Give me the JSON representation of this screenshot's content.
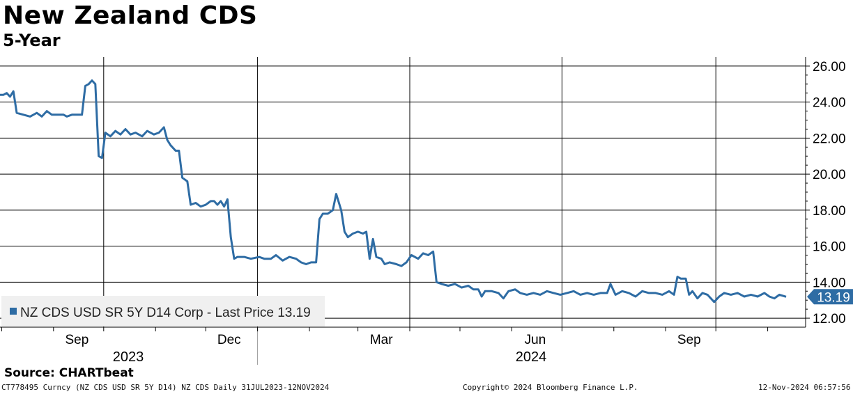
{
  "header": {
    "title": "New Zealand CDS",
    "subtitle": "5-Year"
  },
  "footer": {
    "source": "Source: CHARTbeat",
    "ticker_info": "CT778495 Curncy (NZ CDS USD SR 5Y D14) NZ CDS  Daily 31JUL2023-12NOV2024",
    "copyright": "Copyright© 2024 Bloomberg Finance L.P.",
    "timestamp": "12-Nov-2024 06:57:56"
  },
  "colors": {
    "line": "#2e6ca4",
    "grid": "#000000",
    "legend_bg": "#f0f0f0"
  },
  "chart_data": {
    "type": "line",
    "title": "New Zealand CDS",
    "subtitle": "5-Year",
    "x_range": [
      "2023-07-31",
      "2024-11-12"
    ],
    "ylim": [
      11.5,
      26.5
    ],
    "y_ticks": [
      "12.00",
      "14.00",
      "16.00",
      "18.00",
      "20.00",
      "22.00",
      "24.00",
      "26.00"
    ],
    "x_ticks": [
      {
        "label": "Sep",
        "date": "2023-09-01"
      },
      {
        "label": "Dec",
        "date": "2023-12-01"
      },
      {
        "label": "Mar",
        "date": "2024-03-01"
      },
      {
        "label": "Jun",
        "date": "2024-06-01"
      },
      {
        "label": "Sep",
        "date": "2024-09-01"
      }
    ],
    "year_labels": [
      "2023",
      "2024"
    ],
    "legend": "NZ CDS USD SR 5Y D14 Corp - Last Price 13.19",
    "last_value_label": "13.19",
    "series": [
      {
        "name": "NZ CDS USD SR 5Y D14 Corp",
        "points": [
          [
            "2023-07-31",
            24.4
          ],
          [
            "2023-08-02",
            24.4
          ],
          [
            "2023-08-04",
            24.5
          ],
          [
            "2023-08-06",
            24.3
          ],
          [
            "2023-08-08",
            24.6
          ],
          [
            "2023-08-10",
            23.4
          ],
          [
            "2023-08-14",
            23.3
          ],
          [
            "2023-08-18",
            23.2
          ],
          [
            "2023-08-22",
            23.4
          ],
          [
            "2023-08-25",
            23.2
          ],
          [
            "2023-08-28",
            23.5
          ],
          [
            "2023-08-31",
            23.3
          ],
          [
            "2023-09-04",
            23.3
          ],
          [
            "2023-09-07",
            23.3
          ],
          [
            "2023-09-09",
            23.2
          ],
          [
            "2023-09-12",
            23.3
          ],
          [
            "2023-09-15",
            23.3
          ],
          [
            "2023-09-18",
            23.3
          ],
          [
            "2023-09-20",
            24.9
          ],
          [
            "2023-09-22",
            25.0
          ],
          [
            "2023-09-24",
            25.2
          ],
          [
            "2023-09-26",
            25.0
          ],
          [
            "2023-09-28",
            21.0
          ],
          [
            "2023-09-30",
            20.9
          ],
          [
            "2023-10-02",
            22.3
          ],
          [
            "2023-10-05",
            22.1
          ],
          [
            "2023-10-08",
            22.4
          ],
          [
            "2023-10-11",
            22.2
          ],
          [
            "2023-10-14",
            22.5
          ],
          [
            "2023-10-17",
            22.2
          ],
          [
            "2023-10-20",
            22.3
          ],
          [
            "2023-10-24",
            22.1
          ],
          [
            "2023-10-27",
            22.4
          ],
          [
            "2023-10-31",
            22.2
          ],
          [
            "2023-11-03",
            22.3
          ],
          [
            "2023-11-06",
            22.6
          ],
          [
            "2023-11-08",
            21.9
          ],
          [
            "2023-11-10",
            21.6
          ],
          [
            "2023-11-13",
            21.3
          ],
          [
            "2023-11-15",
            21.3
          ],
          [
            "2023-11-17",
            19.8
          ],
          [
            "2023-11-20",
            19.6
          ],
          [
            "2023-11-22",
            18.3
          ],
          [
            "2023-11-25",
            18.4
          ],
          [
            "2023-11-28",
            18.2
          ],
          [
            "2023-12-01",
            18.3
          ],
          [
            "2023-12-04",
            18.5
          ],
          [
            "2023-12-06",
            18.5
          ],
          [
            "2023-12-08",
            18.3
          ],
          [
            "2023-12-10",
            18.5
          ],
          [
            "2023-12-12",
            18.2
          ],
          [
            "2023-12-14",
            18.6
          ],
          [
            "2023-12-16",
            16.5
          ],
          [
            "2023-12-18",
            15.3
          ],
          [
            "2023-12-20",
            15.4
          ],
          [
            "2023-12-24",
            15.4
          ],
          [
            "2023-12-28",
            15.3
          ],
          [
            "2024-01-02",
            15.4
          ],
          [
            "2024-01-05",
            15.3
          ],
          [
            "2024-01-09",
            15.3
          ],
          [
            "2024-01-12",
            15.5
          ],
          [
            "2024-01-16",
            15.2
          ],
          [
            "2024-01-20",
            15.4
          ],
          [
            "2024-01-24",
            15.3
          ],
          [
            "2024-01-27",
            15.1
          ],
          [
            "2024-01-30",
            15.0
          ],
          [
            "2024-02-02",
            15.1
          ],
          [
            "2024-02-05",
            15.1
          ],
          [
            "2024-02-07",
            17.5
          ],
          [
            "2024-02-09",
            17.8
          ],
          [
            "2024-02-12",
            17.8
          ],
          [
            "2024-02-15",
            18.0
          ],
          [
            "2024-02-17",
            18.9
          ],
          [
            "2024-02-20",
            18.0
          ],
          [
            "2024-02-22",
            16.8
          ],
          [
            "2024-02-24",
            16.5
          ],
          [
            "2024-02-27",
            16.7
          ],
          [
            "2024-03-01",
            16.8
          ],
          [
            "2024-03-04",
            16.7
          ],
          [
            "2024-03-06",
            16.8
          ],
          [
            "2024-03-08",
            15.3
          ],
          [
            "2024-03-10",
            16.4
          ],
          [
            "2024-03-12",
            15.4
          ],
          [
            "2024-03-15",
            15.3
          ],
          [
            "2024-03-17",
            15.0
          ],
          [
            "2024-03-20",
            15.1
          ],
          [
            "2024-03-24",
            15.0
          ],
          [
            "2024-03-27",
            14.9
          ],
          [
            "2024-03-30",
            15.1
          ],
          [
            "2024-04-02",
            15.5
          ],
          [
            "2024-04-06",
            15.3
          ],
          [
            "2024-04-09",
            15.6
          ],
          [
            "2024-04-12",
            15.5
          ],
          [
            "2024-04-15",
            15.7
          ],
          [
            "2024-04-17",
            14.0
          ],
          [
            "2024-04-20",
            13.9
          ],
          [
            "2024-04-24",
            13.8
          ],
          [
            "2024-04-28",
            13.9
          ],
          [
            "2024-05-02",
            13.7
          ],
          [
            "2024-05-06",
            13.8
          ],
          [
            "2024-05-09",
            13.6
          ],
          [
            "2024-05-12",
            13.6
          ],
          [
            "2024-05-14",
            13.2
          ],
          [
            "2024-05-16",
            13.5
          ],
          [
            "2024-05-20",
            13.5
          ],
          [
            "2024-05-24",
            13.4
          ],
          [
            "2024-05-27",
            13.1
          ],
          [
            "2024-05-30",
            13.5
          ],
          [
            "2024-06-03",
            13.6
          ],
          [
            "2024-06-06",
            13.4
          ],
          [
            "2024-06-10",
            13.3
          ],
          [
            "2024-06-14",
            13.4
          ],
          [
            "2024-06-18",
            13.3
          ],
          [
            "2024-06-22",
            13.5
          ],
          [
            "2024-06-26",
            13.4
          ],
          [
            "2024-06-30",
            13.3
          ],
          [
            "2024-07-04",
            13.4
          ],
          [
            "2024-07-08",
            13.5
          ],
          [
            "2024-07-12",
            13.3
          ],
          [
            "2024-07-16",
            13.4
          ],
          [
            "2024-07-20",
            13.3
          ],
          [
            "2024-07-24",
            13.4
          ],
          [
            "2024-07-28",
            13.4
          ],
          [
            "2024-07-30",
            13.9
          ],
          [
            "2024-08-02",
            13.3
          ],
          [
            "2024-08-06",
            13.5
          ],
          [
            "2024-08-10",
            13.4
          ],
          [
            "2024-08-14",
            13.2
          ],
          [
            "2024-08-18",
            13.5
          ],
          [
            "2024-08-22",
            13.4
          ],
          [
            "2024-08-26",
            13.4
          ],
          [
            "2024-08-30",
            13.3
          ],
          [
            "2024-09-03",
            13.5
          ],
          [
            "2024-09-06",
            13.3
          ],
          [
            "2024-09-08",
            14.3
          ],
          [
            "2024-09-10",
            14.2
          ],
          [
            "2024-09-13",
            14.2
          ],
          [
            "2024-09-15",
            13.3
          ],
          [
            "2024-09-17",
            13.5
          ],
          [
            "2024-09-20",
            13.1
          ],
          [
            "2024-09-23",
            13.4
          ],
          [
            "2024-09-26",
            13.3
          ],
          [
            "2024-09-30",
            12.9
          ],
          [
            "2024-10-03",
            13.2
          ],
          [
            "2024-10-06",
            13.4
          ],
          [
            "2024-10-10",
            13.3
          ],
          [
            "2024-10-14",
            13.4
          ],
          [
            "2024-10-18",
            13.2
          ],
          [
            "2024-10-22",
            13.3
          ],
          [
            "2024-10-26",
            13.2
          ],
          [
            "2024-10-30",
            13.4
          ],
          [
            "2024-11-02",
            13.2
          ],
          [
            "2024-11-05",
            13.1
          ],
          [
            "2024-11-08",
            13.3
          ],
          [
            "2024-11-12",
            13.19
          ]
        ]
      }
    ],
    "grid": true,
    "legend_position": "bottom-left"
  }
}
